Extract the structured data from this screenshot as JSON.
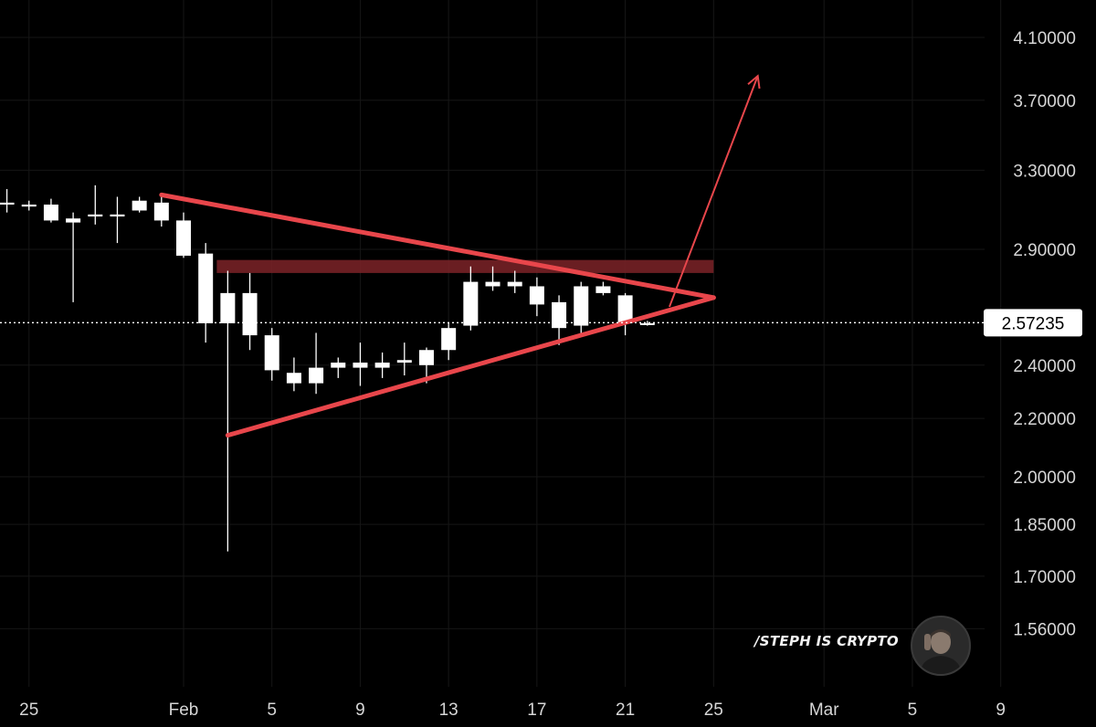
{
  "chart_data": {
    "type": "candlestick",
    "price_scale": "log",
    "y_ticks": [
      "4.10000",
      "3.70000",
      "3.30000",
      "2.90000",
      "2.40000",
      "2.20000",
      "2.00000",
      "1.85000",
      "1.70000",
      "1.56000"
    ],
    "x_ticks": [
      {
        "label": "25",
        "date": "2024-01-25"
      },
      {
        "label": "Feb",
        "date": "2024-02-01"
      },
      {
        "label": "5",
        "date": "2024-02-05"
      },
      {
        "label": "9",
        "date": "2024-02-09"
      },
      {
        "label": "13",
        "date": "2024-02-13"
      },
      {
        "label": "17",
        "date": "2024-02-17"
      },
      {
        "label": "21",
        "date": "2024-02-21"
      },
      {
        "label": "25",
        "date": "2024-02-25"
      },
      {
        "label": "Mar",
        "date": "2024-03-01"
      },
      {
        "label": "5",
        "date": "2024-03-05"
      },
      {
        "label": "9",
        "date": "2024-03-09"
      }
    ],
    "last_price": "2.57235",
    "candles": [
      {
        "date": "2024-01-24",
        "open": 3.13,
        "high": 3.2,
        "low": 3.08,
        "close": 3.12
      },
      {
        "date": "2024-01-25",
        "open": 3.11,
        "high": 3.14,
        "low": 3.09,
        "close": 3.12
      },
      {
        "date": "2024-01-26",
        "open": 3.12,
        "high": 3.15,
        "low": 3.03,
        "close": 3.04
      },
      {
        "date": "2024-01-27",
        "open": 3.05,
        "high": 3.08,
        "low": 2.66,
        "close": 3.03
      },
      {
        "date": "2024-01-28",
        "open": 3.06,
        "high": 3.22,
        "low": 3.02,
        "close": 3.07
      },
      {
        "date": "2024-01-29",
        "open": 3.06,
        "high": 3.16,
        "low": 2.93,
        "close": 3.07
      },
      {
        "date": "2024-01-30",
        "open": 3.09,
        "high": 3.16,
        "low": 3.08,
        "close": 3.14
      },
      {
        "date": "2024-01-31",
        "open": 3.13,
        "high": 3.16,
        "low": 3.01,
        "close": 3.04
      },
      {
        "date": "2024-02-01",
        "open": 3.04,
        "high": 3.08,
        "low": 2.86,
        "close": 2.87
      },
      {
        "date": "2024-02-02",
        "open": 2.88,
        "high": 2.93,
        "low": 2.49,
        "close": 2.57
      },
      {
        "date": "2024-02-03",
        "open": 2.57,
        "high": 2.8,
        "low": 1.77,
        "close": 2.7
      },
      {
        "date": "2024-02-04",
        "open": 2.7,
        "high": 2.79,
        "low": 2.46,
        "close": 2.52
      },
      {
        "date": "2024-02-05",
        "open": 2.52,
        "high": 2.55,
        "low": 2.34,
        "close": 2.38
      },
      {
        "date": "2024-02-06",
        "open": 2.37,
        "high": 2.43,
        "low": 2.3,
        "close": 2.33
      },
      {
        "date": "2024-02-07",
        "open": 2.33,
        "high": 2.53,
        "low": 2.29,
        "close": 2.39
      },
      {
        "date": "2024-02-08",
        "open": 2.39,
        "high": 2.43,
        "low": 2.35,
        "close": 2.41
      },
      {
        "date": "2024-02-09",
        "open": 2.39,
        "high": 2.49,
        "low": 2.32,
        "close": 2.41
      },
      {
        "date": "2024-02-10",
        "open": 2.39,
        "high": 2.45,
        "low": 2.35,
        "close": 2.41
      },
      {
        "date": "2024-02-11",
        "open": 2.41,
        "high": 2.49,
        "low": 2.36,
        "close": 2.42
      },
      {
        "date": "2024-02-12",
        "open": 2.4,
        "high": 2.47,
        "low": 2.33,
        "close": 2.46
      },
      {
        "date": "2024-02-13",
        "open": 2.46,
        "high": 2.57,
        "low": 2.42,
        "close": 2.55
      },
      {
        "date": "2024-02-14",
        "open": 2.56,
        "high": 2.82,
        "low": 2.54,
        "close": 2.75
      },
      {
        "date": "2024-02-15",
        "open": 2.73,
        "high": 2.82,
        "low": 2.71,
        "close": 2.75
      },
      {
        "date": "2024-02-16",
        "open": 2.75,
        "high": 2.8,
        "low": 2.7,
        "close": 2.73
      },
      {
        "date": "2024-02-17",
        "open": 2.73,
        "high": 2.77,
        "low": 2.6,
        "close": 2.65
      },
      {
        "date": "2024-02-18",
        "open": 2.66,
        "high": 2.69,
        "low": 2.48,
        "close": 2.55
      },
      {
        "date": "2024-02-19",
        "open": 2.56,
        "high": 2.75,
        "low": 2.52,
        "close": 2.73
      },
      {
        "date": "2024-02-20",
        "open": 2.73,
        "high": 2.75,
        "low": 2.69,
        "close": 2.7
      },
      {
        "date": "2024-02-21",
        "open": 2.69,
        "high": 2.7,
        "low": 2.52,
        "close": 2.57
      },
      {
        "date": "2024-02-22",
        "open": 2.57,
        "high": 2.58,
        "low": 2.56,
        "close": 2.57
      }
    ],
    "annotations": {
      "triangle": {
        "upper": [
          {
            "date": "2024-01-31",
            "price": 3.17
          },
          {
            "date": "2024-02-25",
            "price": 2.68
          }
        ],
        "lower": [
          {
            "date": "2024-02-03",
            "price": 2.14
          },
          {
            "date": "2024-02-25",
            "price": 2.68
          }
        ]
      },
      "resistance_zone": {
        "from": "2024-02-03",
        "to": "2024-02-25",
        "price_low": 2.79,
        "price_high": 2.85
      },
      "breakout_arrow": {
        "from": {
          "date": "2024-02-23",
          "price": 2.64
        },
        "to": {
          "date": "2024-02-27",
          "price": 3.85
        }
      }
    },
    "grid": true,
    "colors": {
      "background": "#000000",
      "candle": "#ffffff",
      "annotation": "#e8464b",
      "zone": "#7d2328",
      "axis_text": "#d6d6d6"
    }
  },
  "watermark": {
    "text": "/STEPH IS CRYPTO"
  }
}
